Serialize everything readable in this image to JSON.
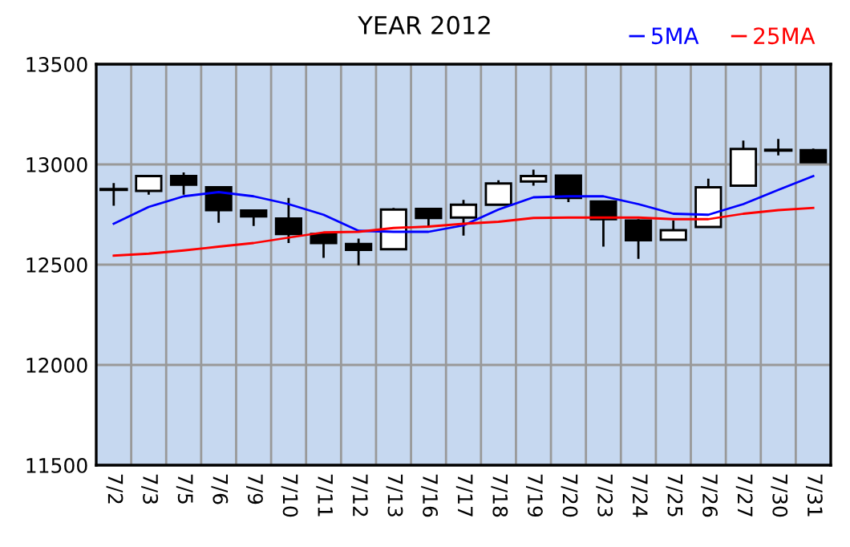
{
  "chart_data": {
    "type": "candlestick",
    "title": "YEAR 2012",
    "categories": [
      "7/2",
      "7/3",
      "7/5",
      "7/6",
      "7/9",
      "7/10",
      "7/11",
      "7/12",
      "7/13",
      "7/16",
      "7/17",
      "7/18",
      "7/19",
      "7/20",
      "7/23",
      "7/24",
      "7/25",
      "7/26",
      "7/27",
      "7/30",
      "7/31"
    ],
    "ohlc": [
      [
        12875,
        12907,
        12794,
        12875
      ],
      [
        12868,
        12942,
        12849,
        12942
      ],
      [
        12942,
        12960,
        12849,
        12899
      ],
      [
        12886,
        12886,
        12709,
        12772
      ],
      [
        12770,
        12770,
        12693,
        12741
      ],
      [
        12730,
        12833,
        12608,
        12653
      ],
      [
        12653,
        12653,
        12534,
        12608
      ],
      [
        12603,
        12630,
        12497,
        12574
      ],
      [
        12577,
        12783,
        12577,
        12775
      ],
      [
        12778,
        12778,
        12690,
        12733
      ],
      [
        12735,
        12823,
        12645,
        12799
      ],
      [
        12799,
        12921,
        12799,
        12905
      ],
      [
        12915,
        12974,
        12894,
        12942
      ],
      [
        12944,
        12944,
        12812,
        12833
      ],
      [
        12815,
        12815,
        12590,
        12727
      ],
      [
        12720,
        12727,
        12529,
        12622
      ],
      [
        12624,
        12720,
        12624,
        12672
      ],
      [
        12688,
        12929,
        12688,
        12886
      ],
      [
        12894,
        13119,
        12894,
        13077
      ],
      [
        13071,
        13127,
        13045,
        13071
      ],
      [
        13071,
        13079,
        13011,
        13011
      ]
    ],
    "series": [
      {
        "name": "5MA",
        "type": "line",
        "color": "#0000ff",
        "values": [
          12704,
          12788,
          12841,
          12862,
          12841,
          12802,
          12749,
          12669,
          12664,
          12664,
          12696,
          12775,
          12836,
          12841,
          12841,
          12802,
          12754,
          12749,
          12802,
          12873,
          12942
        ]
      },
      {
        "name": "25MA",
        "type": "line",
        "color": "#ff0000",
        "values": [
          12545,
          12555,
          12571,
          12590,
          12608,
          12635,
          12661,
          12664,
          12683,
          12690,
          12704,
          12714,
          12733,
          12735,
          12735,
          12735,
          12727,
          12727,
          12754,
          12772,
          12783
        ]
      }
    ],
    "ylim": [
      11500,
      13500
    ],
    "yticks": [
      11500,
      12000,
      12500,
      13000,
      13500
    ],
    "grid": true,
    "legend": "top right"
  }
}
